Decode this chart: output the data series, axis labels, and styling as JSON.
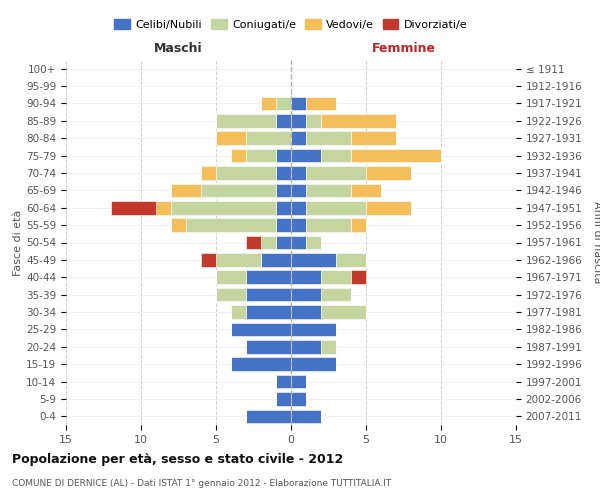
{
  "age_groups": [
    "0-4",
    "5-9",
    "10-14",
    "15-19",
    "20-24",
    "25-29",
    "30-34",
    "35-39",
    "40-44",
    "45-49",
    "50-54",
    "55-59",
    "60-64",
    "65-69",
    "70-74",
    "75-79",
    "80-84",
    "85-89",
    "90-94",
    "95-99",
    "100+"
  ],
  "birth_years": [
    "2007-2011",
    "2002-2006",
    "1997-2001",
    "1992-1996",
    "1987-1991",
    "1982-1986",
    "1977-1981",
    "1972-1976",
    "1967-1971",
    "1962-1966",
    "1957-1961",
    "1952-1956",
    "1947-1951",
    "1942-1946",
    "1937-1941",
    "1932-1936",
    "1927-1931",
    "1922-1926",
    "1917-1921",
    "1912-1916",
    "≤ 1911"
  ],
  "male": {
    "celibi": [
      3,
      1,
      1,
      4,
      3,
      4,
      3,
      3,
      3,
      2,
      1,
      1,
      1,
      1,
      1,
      1,
      0,
      1,
      0,
      0,
      0
    ],
    "coniugati": [
      0,
      0,
      0,
      0,
      0,
      0,
      1,
      2,
      2,
      3,
      1,
      6,
      7,
      5,
      4,
      2,
      3,
      4,
      1,
      0,
      0
    ],
    "vedovi": [
      0,
      0,
      0,
      0,
      0,
      0,
      0,
      0,
      0,
      0,
      0,
      1,
      1,
      2,
      1,
      1,
      2,
      0,
      1,
      0,
      0
    ],
    "divorziati": [
      0,
      0,
      0,
      0,
      0,
      0,
      0,
      0,
      0,
      1,
      1,
      0,
      3,
      0,
      0,
      0,
      0,
      0,
      0,
      0,
      0
    ]
  },
  "female": {
    "nubili": [
      2,
      1,
      1,
      3,
      2,
      3,
      2,
      2,
      2,
      3,
      1,
      1,
      1,
      1,
      1,
      2,
      1,
      1,
      1,
      0,
      0
    ],
    "coniugati": [
      0,
      0,
      0,
      0,
      1,
      0,
      3,
      2,
      2,
      2,
      1,
      3,
      4,
      3,
      4,
      2,
      3,
      1,
      0,
      0,
      0
    ],
    "vedovi": [
      0,
      0,
      0,
      0,
      0,
      0,
      0,
      0,
      0,
      0,
      0,
      1,
      3,
      2,
      3,
      6,
      3,
      5,
      2,
      0,
      0
    ],
    "divorziati": [
      0,
      0,
      0,
      0,
      0,
      0,
      0,
      0,
      1,
      0,
      0,
      0,
      0,
      0,
      0,
      0,
      0,
      0,
      0,
      0,
      0
    ]
  },
  "colors": {
    "celibi": "#4472c4",
    "coniugati": "#c5d5a0",
    "vedovi": "#f4be5a",
    "divorziati": "#c0392b"
  },
  "xlim": 15,
  "title": "Popolazione per età, sesso e stato civile - 2012",
  "subtitle": "COMUNE DI DERNICE (AL) - Dati ISTAT 1° gennaio 2012 - Elaborazione TUTTITALIA.IT",
  "ylabel_left": "Fasce di età",
  "ylabel_right": "Anni di nascita",
  "xlabel_left": "Maschi",
  "xlabel_right": "Femmine",
  "legend_labels": [
    "Celibi/Nubili",
    "Coniugati/e",
    "Vedovi/e",
    "Divorziati/e"
  ],
  "bg_color": "#ffffff",
  "grid_color": "#cccccc"
}
